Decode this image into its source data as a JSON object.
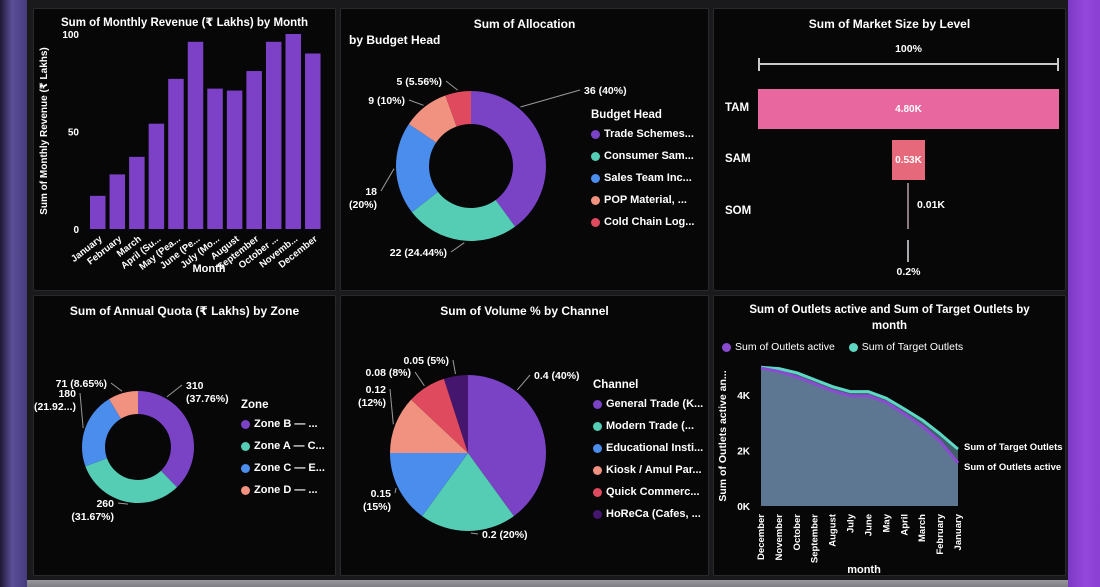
{
  "frame": {
    "left_strip_color": "#5b4f98",
    "right_strip_color": "#8f44d6",
    "bottom_strip_color": "#8f8f94",
    "dashboard_bg": "#1a1a1d",
    "tile_bg": "#070708"
  },
  "chart_data": [
    {
      "id": "monthly-revenue-bar",
      "type": "bar",
      "title": "Sum of Monthly Revenue (₹ Lakhs) by Month",
      "ylabel": "Sum of Monthly Revenue (₹ Lakhs)",
      "xlabel": "Month",
      "yticks": [
        "0",
        "50",
        "100"
      ],
      "ylim": [
        0,
        100
      ],
      "bar_color": "#7d41c8",
      "categories": [
        "January",
        "February",
        "March",
        "April (Su...",
        "May (Pea...",
        "June (Pe...",
        "July (Mo...",
        "August",
        "September",
        "October ...",
        "Novemb...",
        "December"
      ],
      "values": [
        17,
        28,
        37,
        54,
        77,
        96,
        72,
        71,
        81,
        96,
        100,
        90
      ]
    },
    {
      "id": "allocation-donut",
      "type": "donut",
      "title": "Sum of Allocation",
      "subtitle": "by Budget Head",
      "legend_title": "Budget Head",
      "slices": [
        {
          "label": "Trade Schemes...",
          "value": 36,
          "pct": 40,
          "callout": "36 (40%)",
          "color": "#7a43c6"
        },
        {
          "label": "Consumer Sam...",
          "value": 22,
          "pct": 24.44,
          "callout": "22 (24.44%)",
          "color": "#55cdb5"
        },
        {
          "label": "Sales Team Inc...",
          "value": 18,
          "pct": 20,
          "callout": "18\n(20%)",
          "color": "#4a8ded"
        },
        {
          "label": "POP Material, ...",
          "value": 9,
          "pct": 10,
          "callout": "9 (10%)",
          "color": "#f19180"
        },
        {
          "label": "Cold Chain Log...",
          "value": 5,
          "pct": 5.56,
          "callout": "5 (5.56%)",
          "color": "#df4a5f"
        }
      ]
    },
    {
      "id": "market-size-funnel",
      "type": "funnel",
      "title": "Sum of Market Size by Level",
      "top_label": "100%",
      "bottom_label": "0.2%",
      "rows": [
        {
          "label": "TAM",
          "value": "4.80K",
          "width_pct": 100,
          "color": "#e8679e"
        },
        {
          "label": "SAM",
          "value": "0.53K",
          "width_pct": 11,
          "color": "#e5697b"
        },
        {
          "label": "SOM",
          "value": "0.01K",
          "width_pct": 0,
          "color": "#8a7a80"
        }
      ]
    },
    {
      "id": "annual-quota-donut",
      "type": "donut",
      "title": "Sum of Annual Quota (₹ Lakhs) by Zone",
      "legend_title": "Zone",
      "slices": [
        {
          "label": "Zone B — ...",
          "value": 310,
          "pct": 37.76,
          "callout": "310\n(37.76%)",
          "color": "#7a43c6"
        },
        {
          "label": "Zone A — C...",
          "value": 260,
          "pct": 31.67,
          "callout": "260\n(31.67%)",
          "color": "#55cdb5"
        },
        {
          "label": "Zone C — E...",
          "value": 180,
          "pct": 21.92,
          "callout": "180\n(21.92...)",
          "color": "#4a8ded"
        },
        {
          "label": "Zone D — ...",
          "value": 71,
          "pct": 8.65,
          "callout": "71 (8.65%)",
          "color": "#f19180"
        }
      ]
    },
    {
      "id": "volume-pie",
      "type": "pie",
      "title": "Sum of Volume % by Channel",
      "legend_title": "Channel",
      "slices": [
        {
          "label": "General Trade (K...",
          "value": 0.4,
          "pct": 40,
          "callout": "0.4 (40%)",
          "color": "#7a43c6"
        },
        {
          "label": "Modern Trade (...",
          "value": 0.2,
          "pct": 20,
          "callout": "0.2 (20%)",
          "color": "#55cdb5"
        },
        {
          "label": "Educational Insti...",
          "value": 0.15,
          "pct": 15,
          "callout": "0.15\n(15%)",
          "color": "#4a8ded"
        },
        {
          "label": "Kiosk / Amul Par...",
          "value": 0.12,
          "pct": 12,
          "callout": "0.12\n(12%)",
          "color": "#f19180"
        },
        {
          "label": "Quick Commerc...",
          "value": 0.08,
          "pct": 8,
          "callout": "0.08 (8%)",
          "color": "#df4a5f"
        },
        {
          "label": "HoReCa (Cafes, ...",
          "value": 0.05,
          "pct": 5,
          "callout": "0.05 (5%)",
          "color": "#45166e"
        }
      ]
    },
    {
      "id": "outlets-area",
      "type": "area",
      "title": "Sum of Outlets active and Sum of Target Outlets by month",
      "ylabel": "Sum of Outlets active an...",
      "xlabel": "month",
      "yticks": [
        "0K",
        "2K",
        "4K"
      ],
      "months": [
        "December",
        "November",
        "October",
        "September",
        "August",
        "July",
        "June",
        "May",
        "April",
        "March",
        "February",
        "January"
      ],
      "series": [
        {
          "name": "Sum of Target Outlets",
          "color": "#5dd8c5",
          "fill": "#41606b",
          "values": [
            5.0,
            4.95,
            4.8,
            4.55,
            4.3,
            4.12,
            4.12,
            3.88,
            3.5,
            3.1,
            2.6,
            2.05
          ],
          "end_label": "Sum of Target Outlets"
        },
        {
          "name": "Sum of Outlets active",
          "color": "#8a4bd1",
          "fill": "#5d7792",
          "values": [
            4.97,
            4.85,
            4.65,
            4.4,
            4.15,
            3.97,
            3.97,
            3.73,
            3.32,
            2.88,
            2.33,
            1.55
          ],
          "end_label": "Sum of Outlets active"
        }
      ]
    }
  ]
}
